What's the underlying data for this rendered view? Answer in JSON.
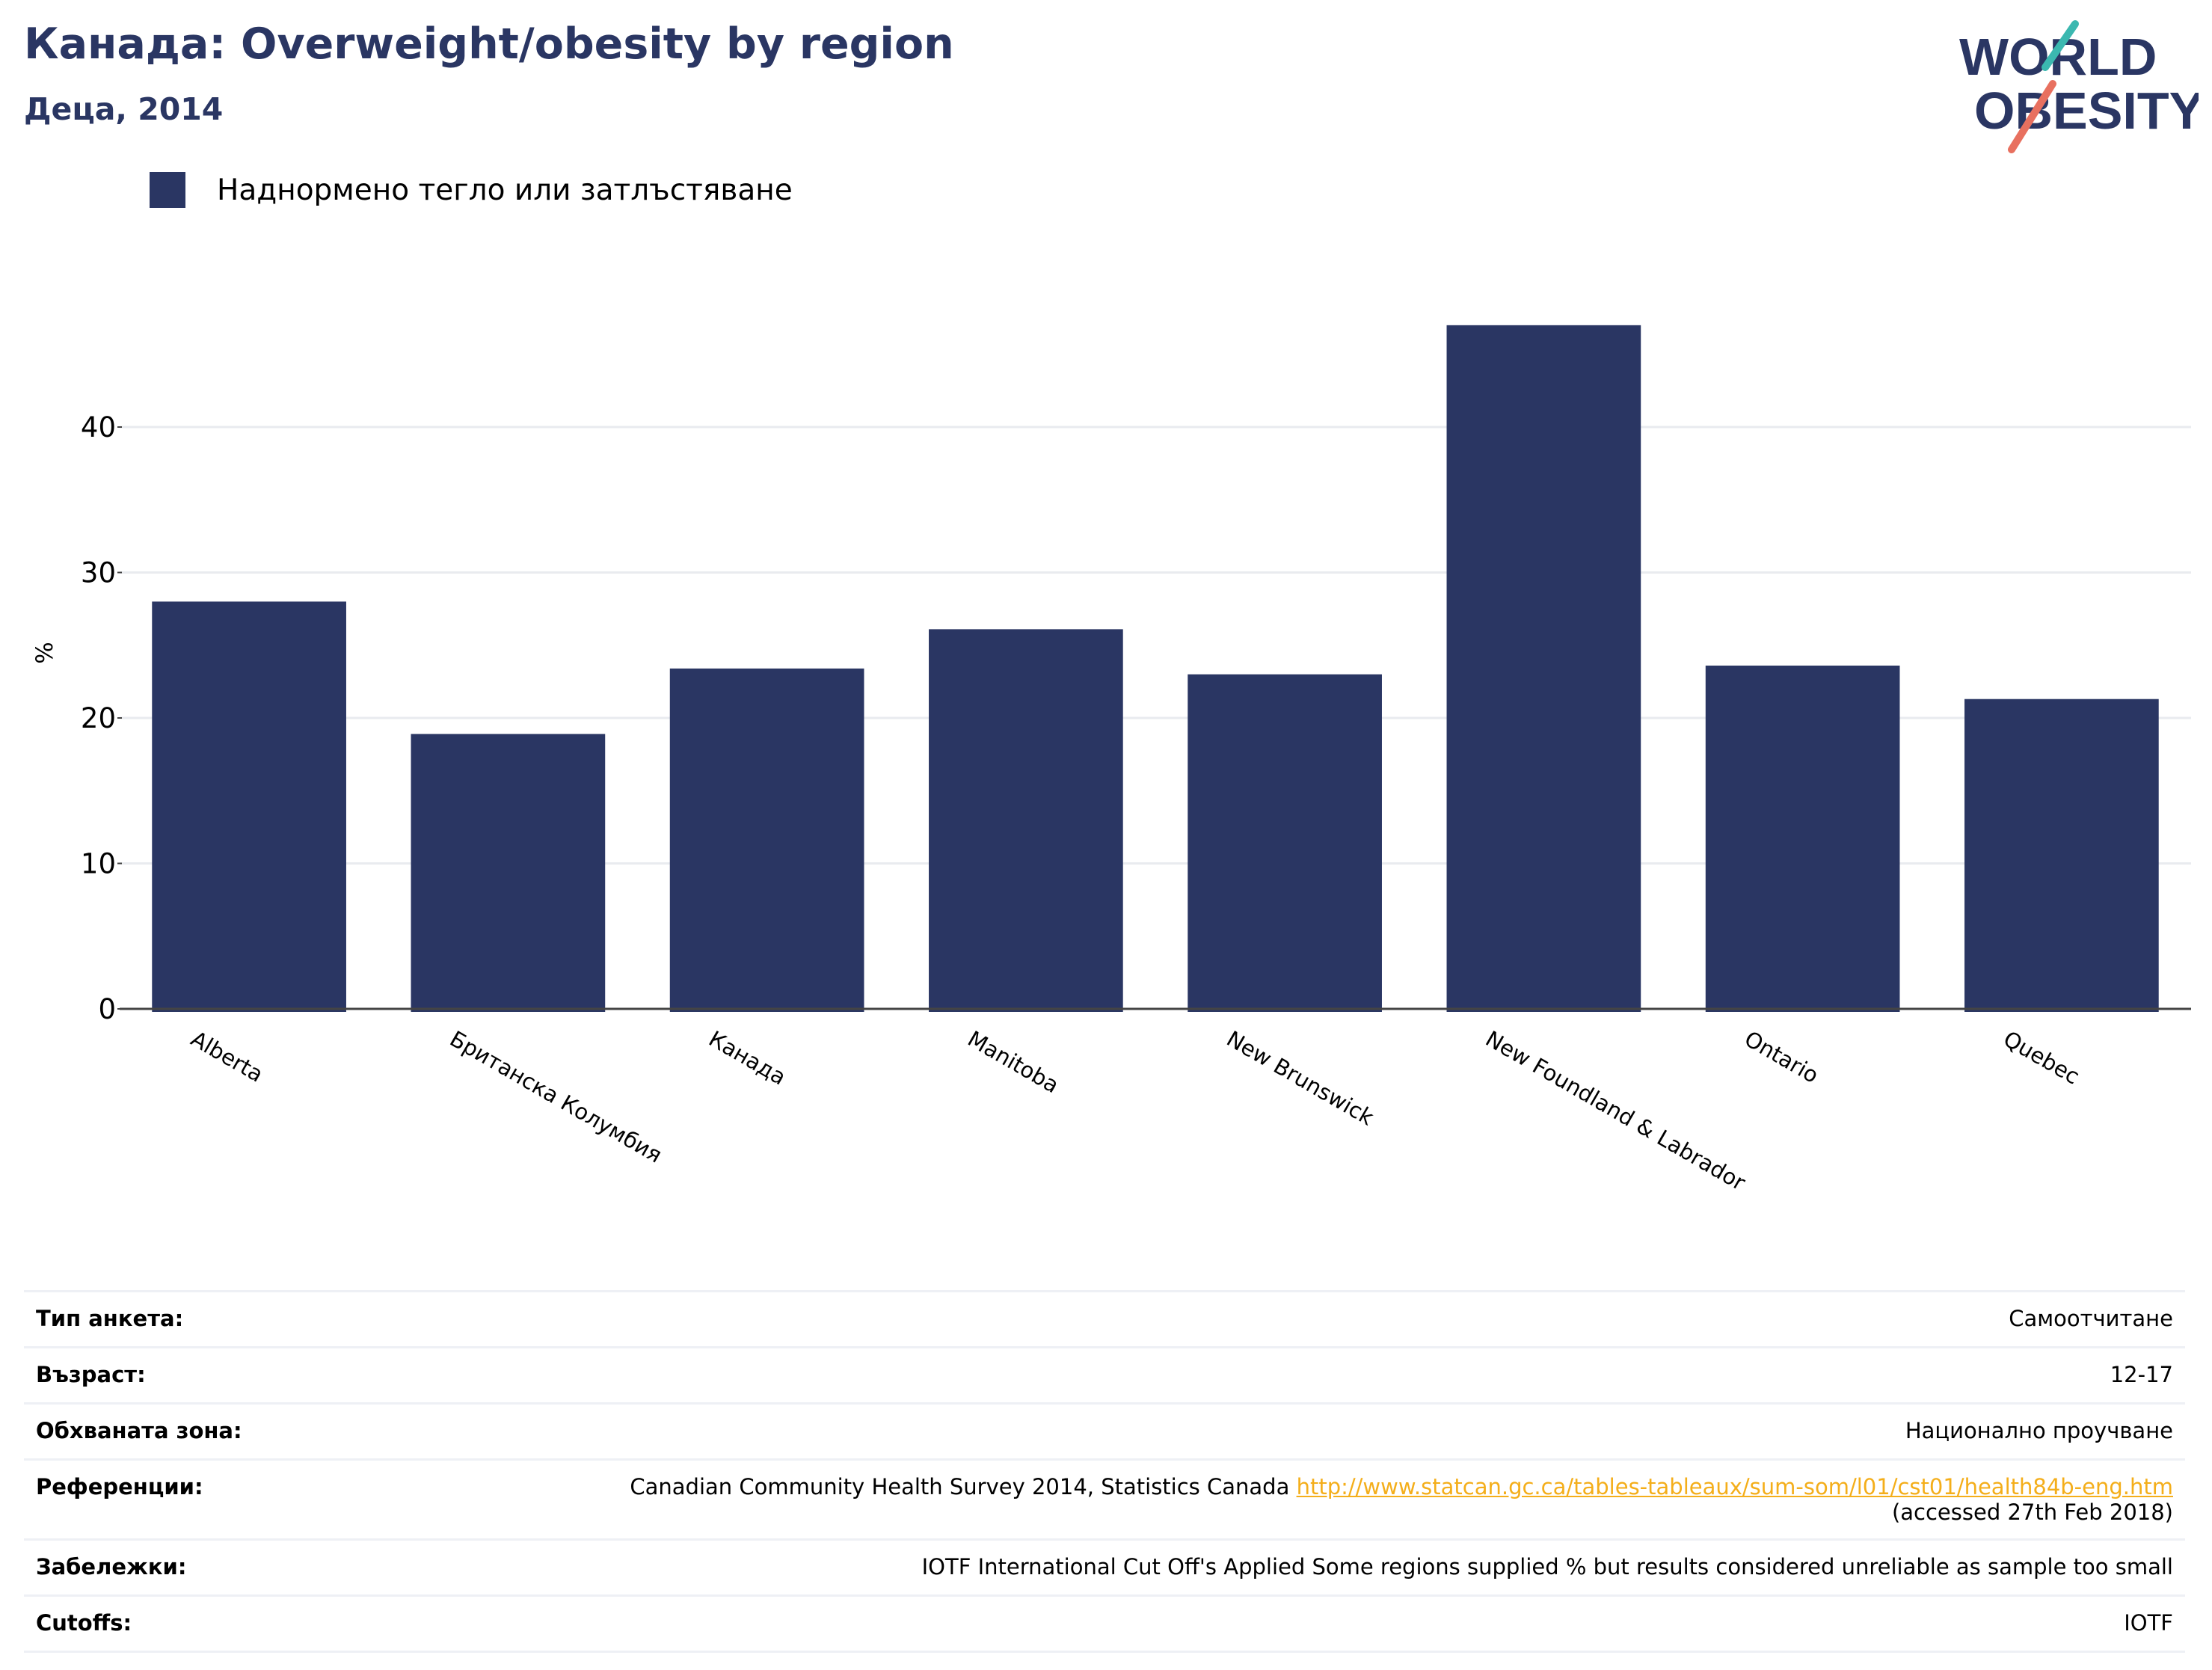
{
  "header": {
    "title": "Канада: Overweight/obesity by region",
    "subtitle": "Деца, 2014",
    "logo_line1": "WORLD",
    "logo_line2": "OBESITY"
  },
  "colors": {
    "bar": "#2a3663",
    "title": "#2a3663",
    "link": "#f4ae1a",
    "logo_teal": "#3bb8b0",
    "logo_coral": "#e8705f"
  },
  "chart_data": {
    "type": "bar",
    "ylabel": "%",
    "ylim": [
      0,
      50
    ],
    "yticks": [
      0,
      10,
      20,
      30,
      40
    ],
    "grid": true,
    "legend_position": "top-left",
    "categories": [
      "Alberta",
      "Британска Колумбия",
      "Канада",
      "Manitoba",
      "New Brunswick",
      "New Foundland & Labrador",
      "Ontario",
      "Quebec"
    ],
    "series": [
      {
        "name": "Наднормено тегло или затлъстяване",
        "values": [
          28.0,
          18.9,
          23.4,
          26.1,
          23.0,
          47.0,
          23.6,
          21.3
        ]
      }
    ]
  },
  "meta": {
    "rows": [
      {
        "label": "Тип анкета:",
        "value": "Самоотчитане"
      },
      {
        "label": "Възраст:",
        "value": "12-17"
      },
      {
        "label": "Обхваната зона:",
        "value": "Национално проучване"
      },
      {
        "label": "Референции:",
        "value": "Canadian Community Health Survey 2014, Statistics Canada",
        "link": "http://www.statcan.gc.ca/tables-tableaux/sum-som/l01/cst01/health84b-eng.htm",
        "suffix": "(accessed 27th Feb 2018)"
      },
      {
        "label": "Забележки:",
        "value": "IOTF International Cut Off's Applied Some regions supplied % but results considered unreliable as sample too small"
      },
      {
        "label": "Cutoffs:",
        "value": "IOTF"
      }
    ]
  }
}
